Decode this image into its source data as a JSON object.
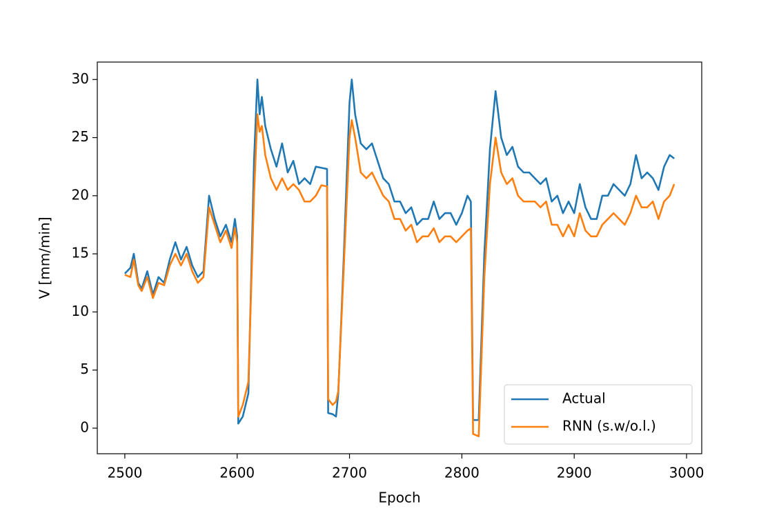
{
  "chart_data": {
    "type": "line",
    "x_label": "Epoch",
    "y_label": "V [mm/min]",
    "x": [
      2500,
      2505,
      2508,
      2512,
      2515,
      2520,
      2525,
      2530,
      2535,
      2540,
      2545,
      2550,
      2555,
      2560,
      2565,
      2570,
      2575,
      2580,
      2585,
      2590,
      2595,
      2598,
      2600,
      2601,
      2605,
      2610,
      2615,
      2618,
      2620,
      2622,
      2625,
      2630,
      2635,
      2640,
      2645,
      2650,
      2655,
      2660,
      2665,
      2670,
      2675,
      2680,
      2681,
      2685,
      2688,
      2690,
      2695,
      2700,
      2702,
      2705,
      2710,
      2715,
      2720,
      2725,
      2730,
      2735,
      2740,
      2745,
      2750,
      2755,
      2760,
      2765,
      2770,
      2775,
      2780,
      2785,
      2790,
      2795,
      2800,
      2805,
      2808,
      2810,
      2815,
      2820,
      2825,
      2830,
      2835,
      2840,
      2845,
      2850,
      2855,
      2860,
      2865,
      2870,
      2875,
      2880,
      2885,
      2890,
      2895,
      2900,
      2905,
      2910,
      2915,
      2920,
      2925,
      2930,
      2935,
      2940,
      2945,
      2950,
      2955,
      2960,
      2965,
      2970,
      2975,
      2980,
      2985,
      2989
    ],
    "series": [
      {
        "name": "Actual",
        "color": "#1f77b4",
        "values": [
          13.3,
          13.8,
          15,
          12.5,
          12,
          13.5,
          11.5,
          13,
          12.5,
          14.5,
          16,
          14.5,
          15.6,
          14,
          13,
          13.5,
          20,
          18,
          16.5,
          17.5,
          16,
          18,
          16.5,
          0.4,
          1,
          3,
          23,
          30,
          27,
          28.5,
          26,
          24,
          22.5,
          24.5,
          22,
          23,
          21,
          21.5,
          21,
          22.5,
          22.4,
          22.3,
          1.3,
          1.2,
          1.0,
          3,
          15,
          28,
          30,
          27,
          24.5,
          24,
          24.5,
          23,
          21.5,
          21,
          19.5,
          19.5,
          18.5,
          19,
          17.5,
          18,
          18,
          19.5,
          18,
          18.5,
          18.5,
          17.5,
          18.5,
          20,
          19.5,
          0.7,
          0.7,
          15,
          24,
          29,
          25,
          23.5,
          24.2,
          22.5,
          22,
          22,
          21.5,
          21,
          21.5,
          19.5,
          20,
          18.5,
          19.5,
          18.5,
          21,
          19,
          18,
          18,
          20,
          20,
          21,
          20.5,
          20,
          21,
          23.5,
          21.5,
          22,
          21.5,
          20.5,
          22.5,
          23.5,
          23.2
        ]
      },
      {
        "name": "RNN (s.w/o.l.)",
        "color": "#ff7f0e",
        "values": [
          13.2,
          13,
          14.5,
          12.3,
          11.8,
          13,
          11.2,
          12.5,
          12.3,
          14,
          15,
          14,
          15,
          13.5,
          12.5,
          13,
          19,
          17.5,
          16,
          17,
          15.5,
          17.2,
          16,
          1,
          2,
          4,
          20,
          27,
          25.5,
          26,
          23.5,
          21.5,
          20.5,
          21.5,
          20.5,
          21,
          20.5,
          19.5,
          19.5,
          20,
          20.9,
          20.8,
          2.5,
          2,
          2.3,
          3.2,
          14,
          25,
          26.5,
          25,
          22,
          21.5,
          22,
          21,
          20,
          19.5,
          18,
          18,
          17,
          17.5,
          16,
          16.5,
          16.5,
          17.2,
          16,
          16.5,
          16.5,
          16,
          16.5,
          17,
          17.2,
          -0.5,
          -0.7,
          13,
          21,
          25,
          22,
          21,
          21.5,
          20,
          19.5,
          19.5,
          19.5,
          19,
          19.5,
          17.5,
          17.5,
          16.5,
          17.5,
          16.5,
          18.5,
          17,
          16.5,
          16.5,
          17.5,
          18,
          18.5,
          18,
          17.5,
          18.5,
          20,
          19,
          19,
          19.5,
          18,
          19.5,
          20,
          21
        ]
      }
    ],
    "xlim": [
      2475.5,
      3013.5
    ],
    "ylim": [
      -2.2,
      31.5
    ],
    "xticks": [
      2500,
      2600,
      2700,
      2800,
      2900,
      3000
    ],
    "yticks": [
      0,
      5,
      10,
      15,
      20,
      25,
      30
    ],
    "legend": "lower right"
  }
}
